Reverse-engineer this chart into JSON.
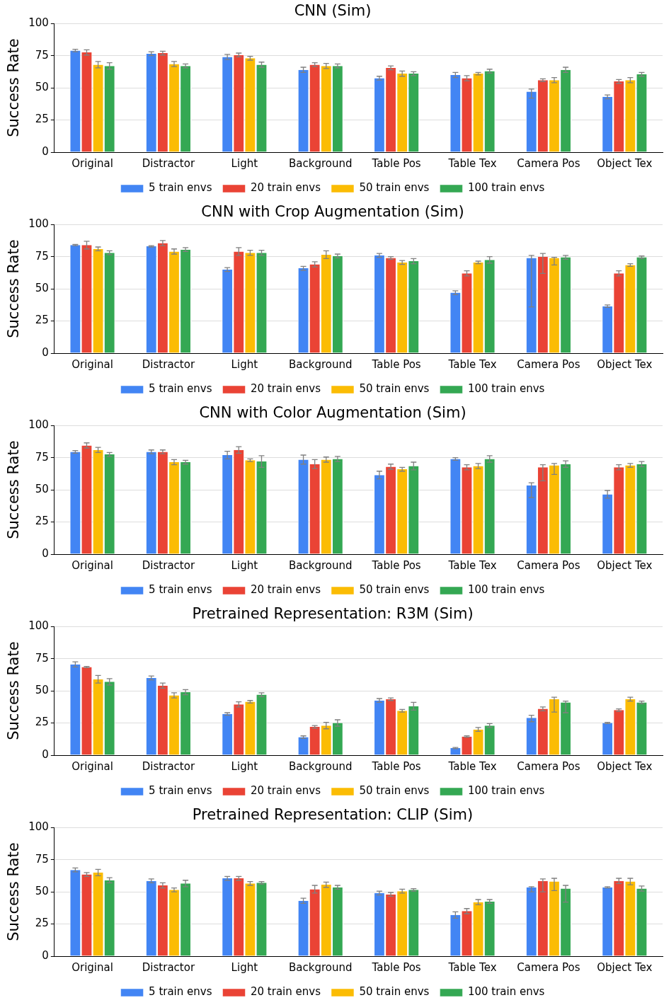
{
  "chart_data": [
    {
      "type": "bar",
      "title": "CNN (Sim)",
      "ylabel": "Success Rate",
      "categories": [
        "Original",
        "Distractor",
        "Light",
        "Background",
        "Table Pos",
        "Table Tex",
        "Camera Pos",
        "Object Tex"
      ],
      "ylim": [
        0,
        100
      ],
      "yticks": [
        0,
        25,
        50,
        75,
        100
      ],
      "grid": "y",
      "legend": "bottom",
      "series": [
        {
          "name": "5 train envs",
          "color": "#4285f4",
          "values": [
            79,
            76.5,
            74,
            64,
            57.5,
            60,
            47,
            43
          ],
          "errors": [
            1,
            1.5,
            2,
            2,
            1.5,
            2,
            [
              42,
              49
            ],
            1.5
          ]
        },
        {
          "name": "20 train envs",
          "color": "#ea4335",
          "values": [
            77.5,
            77,
            75.5,
            68,
            65.5,
            57.5,
            56,
            55
          ],
          "errors": [
            2,
            1.5,
            1.5,
            1.5,
            1.5,
            2,
            1,
            1.5
          ]
        },
        {
          "name": "50 train envs",
          "color": "#fbbc04",
          "values": [
            68,
            68.5,
            73,
            67,
            61,
            61,
            56,
            56
          ],
          "errors": [
            2.5,
            2,
            1.5,
            2,
            2,
            1,
            2,
            2
          ]
        },
        {
          "name": "100 train envs",
          "color": "#34a853",
          "values": [
            67,
            67,
            68,
            67,
            61,
            63,
            64,
            60.5
          ],
          "errors": [
            2.5,
            1.5,
            2,
            1.5,
            1.5,
            1.5,
            2,
            1.5
          ]
        }
      ]
    },
    {
      "type": "bar",
      "title": "CNN with Crop Augmentation (Sim)",
      "ylabel": "Success Rate",
      "categories": [
        "Original",
        "Distractor",
        "Light",
        "Background",
        "Table Pos",
        "Table Tex",
        "Camera Pos",
        "Object Tex"
      ],
      "ylim": [
        0,
        100
      ],
      "yticks": [
        0,
        25,
        50,
        75,
        100
      ],
      "grid": "y",
      "legend": "bottom",
      "series": [
        {
          "name": "5 train envs",
          "color": "#4285f4",
          "values": [
            84,
            83,
            65,
            66,
            76,
            47,
            74,
            36.5
          ],
          "errors": [
            0.5,
            0.5,
            1.5,
            1.5,
            1.5,
            1.5,
            [
              36,
              76
            ],
            1
          ]
        },
        {
          "name": "20 train envs",
          "color": "#ea4335",
          "values": [
            84,
            85.5,
            79,
            69,
            74,
            62,
            75,
            62
          ],
          "errors": [
            3,
            2,
            3,
            2,
            1,
            2,
            [
              62,
              77.5
            ],
            2
          ]
        },
        {
          "name": "50 train envs",
          "color": "#fbbc04",
          "values": [
            81,
            79,
            78,
            76.5,
            70.5,
            70.5,
            74,
            68.5
          ],
          "errors": [
            1.5,
            2,
            2,
            3,
            1.5,
            1,
            [
              68.5,
              74.5
            ],
            1
          ]
        },
        {
          "name": "100 train envs",
          "color": "#34a853",
          "values": [
            78,
            80.5,
            78,
            75.5,
            71.5,
            72.5,
            74.5,
            74.5
          ],
          "errors": [
            1.5,
            1.5,
            2,
            1.5,
            2,
            2.5,
            1.5,
            1
          ]
        }
      ]
    },
    {
      "type": "bar",
      "title": "CNN with Color Augmentation (Sim)",
      "ylabel": "Success Rate",
      "categories": [
        "Original",
        "Distractor",
        "Light",
        "Background",
        "Table Pos",
        "Table Tex",
        "Camera Pos",
        "Object Tex"
      ],
      "ylim": [
        0,
        100
      ],
      "yticks": [
        0,
        25,
        50,
        75,
        100
      ],
      "grid": "y",
      "legend": "bottom",
      "series": [
        {
          "name": "5 train envs",
          "color": "#4285f4",
          "values": [
            79.5,
            79.5,
            77,
            73.5,
            61.5,
            74,
            53.5,
            46.5
          ],
          "errors": [
            1,
            1.5,
            3,
            3.5,
            3,
            1,
            [
              44,
              55.5
            ],
            3
          ]
        },
        {
          "name": "20 train envs",
          "color": "#ea4335",
          "values": [
            84.5,
            79.5,
            81,
            70,
            68,
            67.5,
            67.5,
            67.5
          ],
          "errors": [
            2,
            1.5,
            2.5,
            3.5,
            2,
            2,
            [
              57,
              69.5
            ],
            2
          ]
        },
        {
          "name": "50 train envs",
          "color": "#fbbc04",
          "values": [
            81,
            71.5,
            73,
            73.5,
            66,
            68.5,
            69,
            69
          ],
          "errors": [
            2,
            2,
            1,
            2,
            1.5,
            2,
            [
              62,
              70.5
            ],
            1.5
          ]
        },
        {
          "name": "100 train envs",
          "color": "#34a853",
          "values": [
            77.5,
            71.5,
            72,
            74,
            68.5,
            74,
            70,
            70
          ],
          "errors": [
            1.5,
            1.5,
            4.5,
            2,
            3,
            2.5,
            2.5,
            2
          ]
        }
      ]
    },
    {
      "type": "bar",
      "title": "Pretrained Representation: R3M (Sim)",
      "ylabel": "Success Rate",
      "categories": [
        "Original",
        "Distractor",
        "Light",
        "Background",
        "Table Pos",
        "Table Tex",
        "Camera Pos",
        "Object Tex"
      ],
      "ylim": [
        0,
        100
      ],
      "yticks": [
        0,
        25,
        50,
        75,
        100
      ],
      "grid": "y",
      "legend": "bottom",
      "series": [
        {
          "name": "5 train envs",
          "color": "#4285f4",
          "values": [
            70.5,
            60,
            32,
            14,
            42.5,
            5.5,
            29,
            25
          ],
          "errors": [
            2,
            1.5,
            1,
            1,
            1.5,
            0.5,
            [
              26,
              31
            ],
            0.5
          ]
        },
        {
          "name": "20 train envs",
          "color": "#ea4335",
          "values": [
            68.5,
            54,
            39.5,
            22,
            43.5,
            14.5,
            36,
            35
          ],
          "errors": [
            0.5,
            2,
            2,
            1,
            1,
            0.5,
            1.5,
            1
          ]
        },
        {
          "name": "50 train envs",
          "color": "#fbbc04",
          "values": [
            59,
            46.5,
            41.5,
            23,
            34.5,
            20,
            43.5,
            43.5
          ],
          "errors": [
            3,
            2,
            1,
            2.5,
            1,
            1.5,
            [
              33.5,
              45
            ],
            1.5
          ]
        },
        {
          "name": "100 train envs",
          "color": "#34a853",
          "values": [
            57,
            49,
            47,
            25,
            38,
            23,
            41,
            41
          ],
          "errors": [
            2.5,
            2,
            1.5,
            2.5,
            3,
            1.5,
            [
              33,
              42
            ],
            1
          ]
        }
      ]
    },
    {
      "type": "bar",
      "title": "Pretrained Representation: CLIP (Sim)",
      "ylabel": "Success Rate",
      "categories": [
        "Original",
        "Distractor",
        "Light",
        "Background",
        "Table Pos",
        "Table Tex",
        "Camera Pos",
        "Object Tex"
      ],
      "ylim": [
        0,
        100
      ],
      "yticks": [
        0,
        25,
        50,
        75,
        100
      ],
      "grid": "y",
      "legend": "bottom",
      "series": [
        {
          "name": "5 train envs",
          "color": "#4285f4",
          "values": [
            67,
            58.5,
            60.5,
            43,
            49,
            32,
            53.5,
            53.5
          ],
          "errors": [
            1.5,
            1.5,
            1.5,
            2,
            1.5,
            2.5,
            [
              50,
              54
            ],
            0.5
          ]
        },
        {
          "name": "20 train envs",
          "color": "#ea4335",
          "values": [
            63.5,
            55,
            60.5,
            52,
            48,
            35,
            58.5,
            58.5
          ],
          "errors": [
            1.5,
            2,
            1.5,
            3,
            1.5,
            2,
            [
              50,
              60
            ],
            2
          ]
        },
        {
          "name": "50 train envs",
          "color": "#fbbc04",
          "values": [
            65,
            51.5,
            56.5,
            55.5,
            50.5,
            42,
            58,
            58
          ],
          "errors": [
            2.5,
            1.5,
            1.5,
            2,
            1.5,
            2,
            [
              51,
              60.5
            ],
            2.5
          ]
        },
        {
          "name": "100 train envs",
          "color": "#34a853",
          "values": [
            59,
            56.5,
            57,
            53.5,
            51.5,
            42.5,
            52.5,
            52.5
          ],
          "errors": [
            2,
            2.5,
            1,
            1.5,
            1,
            1.5,
            [
              42,
              55
            ],
            2
          ]
        }
      ]
    }
  ]
}
